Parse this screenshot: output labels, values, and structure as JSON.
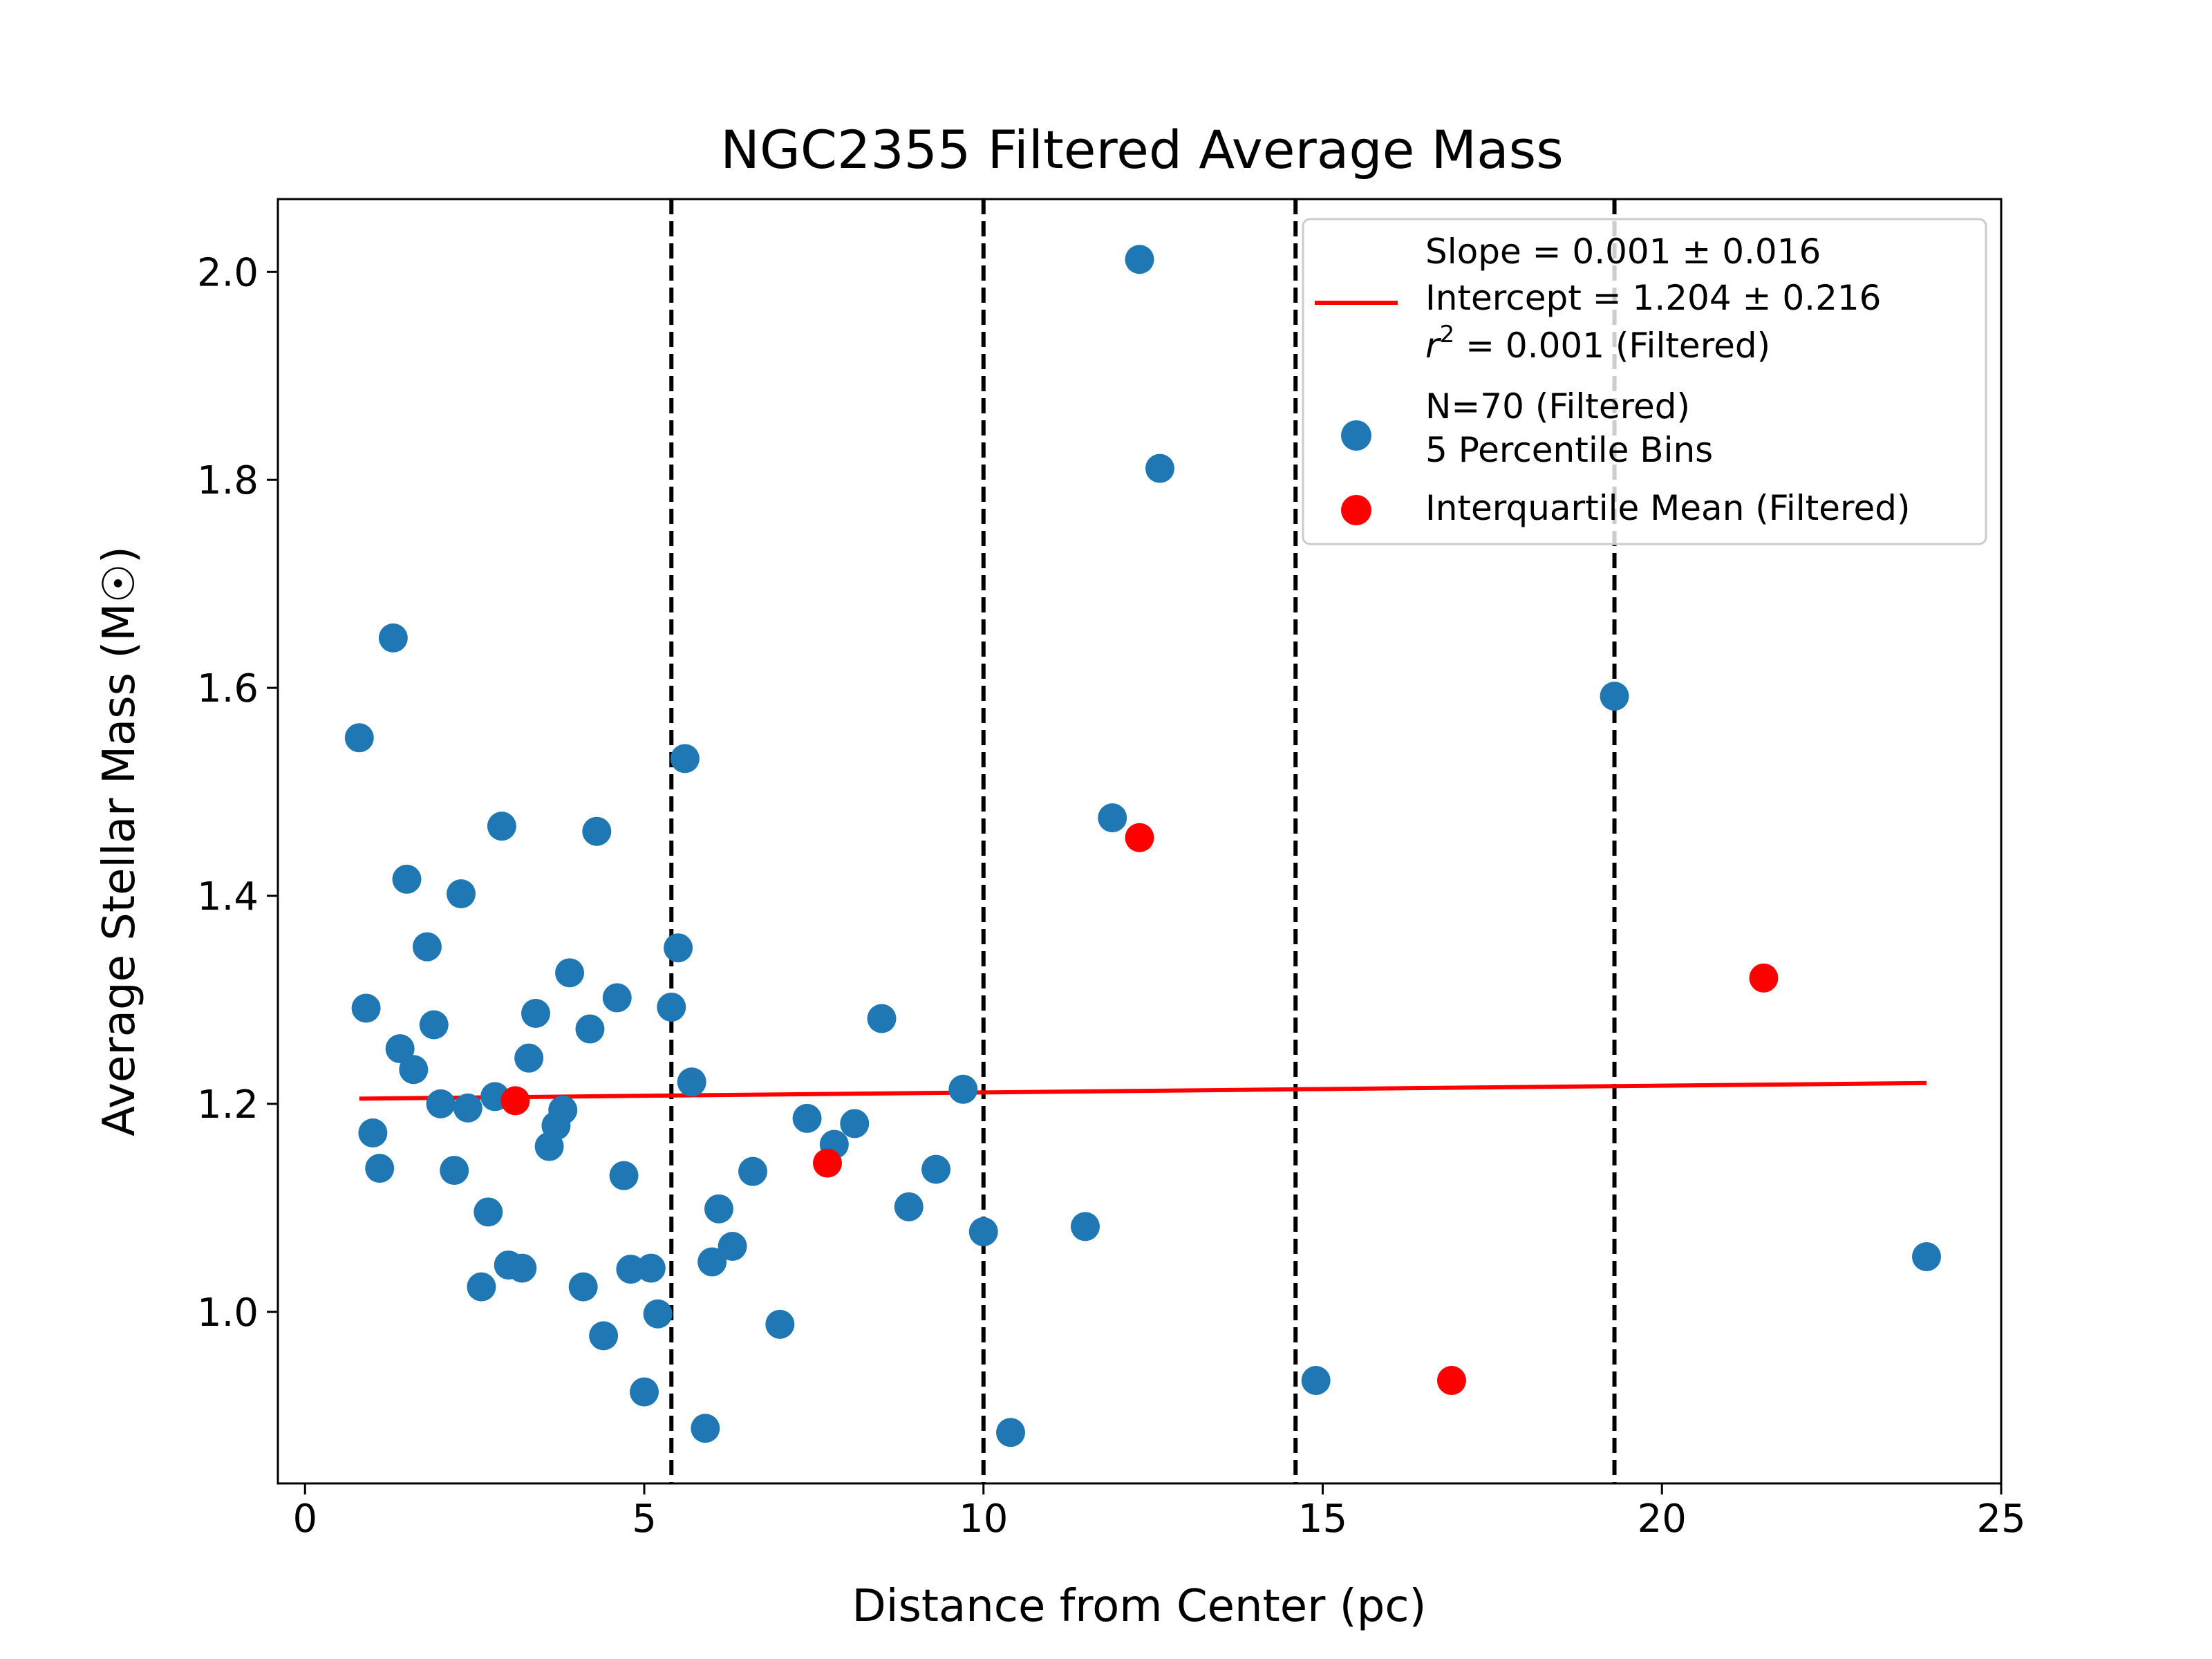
{
  "chart_data": {
    "type": "scatter",
    "title": "NGC2355 Filtered Average Mass",
    "xlabel": "Distance from Center (pc)",
    "ylabel": "Average Stellar Mass (M☉)",
    "xlim": [
      -0.4,
      25
    ],
    "ylim": [
      0.835,
      2.07
    ],
    "xticks": [
      0,
      5,
      10,
      15,
      20,
      25
    ],
    "yticks": [
      1.0,
      1.2,
      1.4,
      1.6,
      1.8,
      2.0
    ],
    "ytick_labels": [
      "1.0",
      "1.2",
      "1.4",
      "1.6",
      "1.8",
      "2.0"
    ],
    "grid": false,
    "legend_position": "top-right",
    "bin_edges": [
      5.4,
      10.0,
      14.6,
      19.3
    ],
    "series": [
      {
        "name": "N=70 (Filtered)\n5 Percentile Bins",
        "kind": "scatter",
        "color": "#1f77b4",
        "points": [
          [
            0.8,
            1.552
          ],
          [
            0.9,
            1.292
          ],
          [
            1.0,
            1.172
          ],
          [
            1.1,
            1.138
          ],
          [
            1.3,
            1.648
          ],
          [
            1.4,
            1.253
          ],
          [
            1.5,
            1.416
          ],
          [
            1.6,
            1.233
          ],
          [
            1.8,
            1.351
          ],
          [
            1.9,
            1.276
          ],
          [
            2.0,
            1.2
          ],
          [
            2.2,
            1.136
          ],
          [
            2.3,
            1.402
          ],
          [
            2.4,
            1.196
          ],
          [
            2.6,
            1.024
          ],
          [
            2.7,
            1.096
          ],
          [
            2.8,
            1.207
          ],
          [
            2.9,
            1.467
          ],
          [
            3.0,
            1.045
          ],
          [
            3.2,
            1.042
          ],
          [
            3.3,
            1.244
          ],
          [
            3.4,
            1.287
          ],
          [
            3.6,
            1.159
          ],
          [
            3.7,
            1.179
          ],
          [
            3.8,
            1.194
          ],
          [
            3.9,
            1.326
          ],
          [
            4.1,
            1.024
          ],
          [
            4.2,
            1.272
          ],
          [
            4.3,
            1.462
          ],
          [
            4.4,
            0.977
          ],
          [
            4.6,
            1.302
          ],
          [
            4.7,
            1.131
          ],
          [
            4.8,
            1.041
          ],
          [
            5.0,
            0.923
          ],
          [
            5.1,
            1.042
          ],
          [
            5.2,
            0.998
          ],
          [
            5.4,
            1.293
          ],
          [
            5.5,
            1.35
          ],
          [
            5.6,
            1.532
          ],
          [
            5.7,
            1.221
          ],
          [
            5.9,
            0.888
          ],
          [
            6.0,
            1.048
          ],
          [
            6.1,
            1.099
          ],
          [
            6.3,
            1.063
          ],
          [
            6.6,
            1.135
          ],
          [
            7.0,
            0.988
          ],
          [
            7.4,
            1.186
          ],
          [
            7.8,
            1.161
          ],
          [
            8.1,
            1.181
          ],
          [
            8.5,
            1.282
          ],
          [
            8.9,
            1.101
          ],
          [
            9.3,
            1.137
          ],
          [
            9.7,
            1.214
          ],
          [
            10.0,
            1.077
          ],
          [
            10.4,
            0.884
          ],
          [
            11.5,
            1.082
          ],
          [
            11.9,
            1.475
          ],
          [
            12.3,
            2.012
          ],
          [
            12.6,
            1.811
          ],
          [
            14.9,
            0.934
          ],
          [
            19.3,
            1.592
          ],
          [
            23.9,
            1.053
          ]
        ]
      },
      {
        "name": "Interquartile Mean (Filtered)",
        "kind": "scatter",
        "color": "#ff0000",
        "points": [
          [
            3.1,
            1.203
          ],
          [
            7.7,
            1.143
          ],
          [
            12.3,
            1.456
          ],
          [
            16.9,
            0.934
          ],
          [
            21.5,
            1.321
          ]
        ]
      },
      {
        "name": "fit",
        "kind": "line",
        "color": "#ff0000",
        "points": [
          [
            0.8,
            1.205
          ],
          [
            23.9,
            1.22
          ]
        ]
      }
    ],
    "legend": {
      "fit_lines": [
        "Slope = 0.001 ± 0.016",
        "Intercept = 1.204 ± 0.216",
        " = 0.001 (Filtered)"
      ],
      "r_symbol": "r",
      "r_exponent": "2",
      "scatter_lines": [
        "N=70 (Filtered)",
        "5 Percentile Bins"
      ],
      "iqm_line": "Interquartile Mean (Filtered)"
    }
  }
}
